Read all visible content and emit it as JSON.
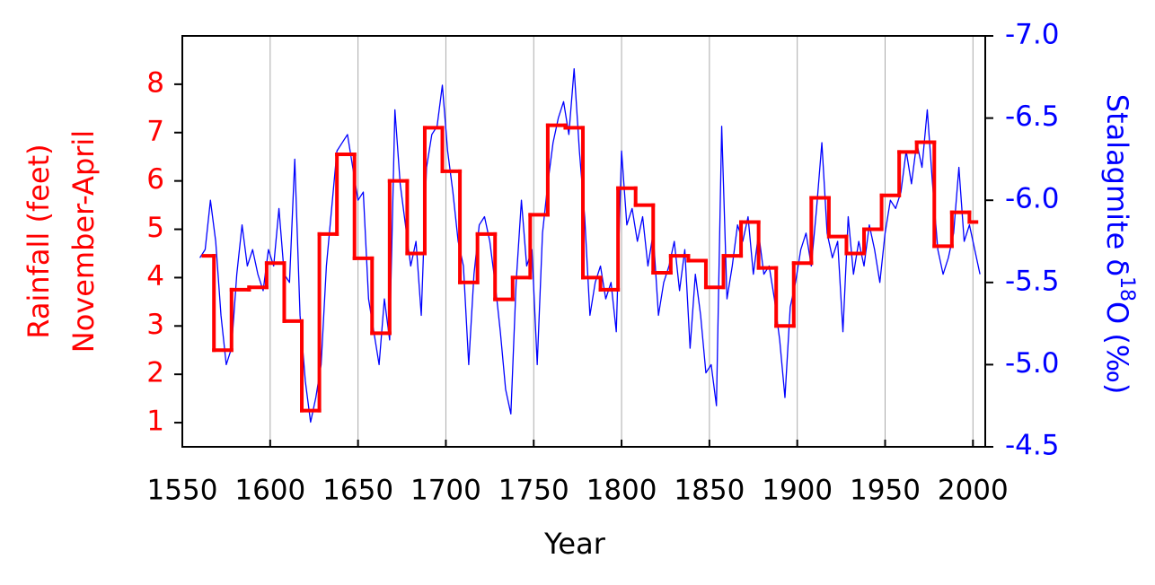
{
  "chart_data": {
    "type": "line",
    "xlabel": "Year",
    "ylabel": [
      "Rainfall (feet)",
      "November-April"
    ],
    "y2label": "Stalagmite δ18O (‰)",
    "xlim": [
      1550,
      2007
    ],
    "xticks": [
      1550,
      1600,
      1650,
      1700,
      1750,
      1800,
      1850,
      1900,
      1950,
      2000
    ],
    "ylim": [
      0.5,
      9
    ],
    "yticks": [
      1,
      2,
      3,
      4,
      5,
      6,
      7,
      8
    ],
    "y2lim": [
      -4.5,
      -7.0
    ],
    "y2ticks": [
      {
        "value": -7,
        "label": "-7.0"
      },
      -6.5,
      {
        "value": -6,
        "label": "-6.0"
      },
      -5.5,
      {
        "value": -5,
        "label": "-5.0"
      },
      -4.5
    ],
    "grid": "x",
    "ycolor": "#ff0000",
    "y2color": "#0000ff",
    "series": [
      {
        "type": "line",
        "axis": "y2",
        "color": "#0000ff",
        "x": [
          1560,
          1563,
          1566,
          1569,
          1572,
          1575,
          1578,
          1581,
          1584,
          1587,
          1590,
          1593,
          1596,
          1599,
          1602,
          1605,
          1608,
          1611,
          1614,
          1617,
          1620,
          1623,
          1626,
          1629,
          1632,
          1635,
          1638,
          1641,
          1644,
          1647,
          1650,
          1653,
          1656,
          1659,
          1662,
          1665,
          1668,
          1671,
          1674,
          1677,
          1680,
          1683,
          1686,
          1689,
          1692,
          1695,
          1698,
          1701,
          1704,
          1707,
          1710,
          1713,
          1716,
          1719,
          1722,
          1725,
          1728,
          1731,
          1734,
          1737,
          1740,
          1743,
          1746,
          1749,
          1752,
          1755,
          1758,
          1761,
          1764,
          1767,
          1770,
          1773,
          1776,
          1779,
          1782,
          1785,
          1788,
          1791,
          1794,
          1797,
          1800,
          1803,
          1806,
          1809,
          1812,
          1815,
          1818,
          1821,
          1824,
          1827,
          1830,
          1833,
          1836,
          1839,
          1842,
          1845,
          1848,
          1851,
          1854,
          1857,
          1860,
          1863,
          1866,
          1869,
          1872,
          1875,
          1878,
          1881,
          1884,
          1887,
          1890,
          1893,
          1896,
          1899,
          1902,
          1905,
          1908,
          1911,
          1914,
          1917,
          1920,
          1923,
          1926,
          1929,
          1932,
          1935,
          1938,
          1941,
          1944,
          1947,
          1950,
          1953,
          1956,
          1959,
          1962,
          1965,
          1968,
          1971,
          1974,
          1977,
          1980,
          1983,
          1986,
          1989,
          1992,
          1995,
          1998,
          2001,
          2004
        ],
        "values": [
          -5.65,
          -5.7,
          -6.0,
          -5.75,
          -5.3,
          -5.0,
          -5.1,
          -5.55,
          -5.85,
          -5.6,
          -5.7,
          -5.55,
          -5.45,
          -5.7,
          -5.6,
          -5.95,
          -5.55,
          -5.5,
          -6.25,
          -5.3,
          -4.9,
          -4.65,
          -4.8,
          -5.0,
          -5.6,
          -5.95,
          -6.3,
          -6.35,
          -6.4,
          -6.2,
          -6.0,
          -6.05,
          -5.4,
          -5.2,
          -5.0,
          -5.4,
          -5.15,
          -6.55,
          -6.1,
          -5.85,
          -5.6,
          -5.75,
          -5.3,
          -6.2,
          -6.4,
          -6.45,
          -6.7,
          -6.3,
          -6.05,
          -5.75,
          -5.6,
          -5.0,
          -5.55,
          -5.85,
          -5.9,
          -5.75,
          -5.5,
          -5.2,
          -4.85,
          -4.7,
          -5.5,
          -6.0,
          -5.6,
          -5.7,
          -5.0,
          -5.8,
          -6.1,
          -6.35,
          -6.5,
          -6.6,
          -6.4,
          -6.8,
          -6.3,
          -5.9,
          -5.3,
          -5.5,
          -5.6,
          -5.4,
          -5.5,
          -5.2,
          -6.3,
          -5.85,
          -5.95,
          -5.75,
          -5.9,
          -5.6,
          -5.8,
          -5.3,
          -5.5,
          -5.6,
          -5.75,
          -5.45,
          -5.7,
          -5.1,
          -5.55,
          -5.3,
          -4.95,
          -5.0,
          -4.75,
          -6.45,
          -5.4,
          -5.6,
          -5.85,
          -5.75,
          -5.9,
          -5.55,
          -5.8,
          -5.55,
          -5.6,
          -5.4,
          -5.15,
          -4.8,
          -5.35,
          -5.5,
          -5.7,
          -5.8,
          -5.6,
          -5.95,
          -6.35,
          -5.8,
          -5.65,
          -5.75,
          -5.2,
          -5.9,
          -5.55,
          -5.75,
          -5.6,
          -5.85,
          -5.7,
          -5.5,
          -5.8,
          -6.0,
          -5.95,
          -6.05,
          -6.3,
          -6.1,
          -6.35,
          -6.2,
          -6.55,
          -6.1,
          -5.7,
          -5.55,
          -5.65,
          -5.8,
          -6.2,
          -5.75,
          -5.85,
          -5.7,
          -5.55
        ]
      },
      {
        "type": "step",
        "axis": "y",
        "color": "#ff0000",
        "bins": [
          1562,
          1568,
          1578,
          1588,
          1598,
          1608,
          1618,
          1628,
          1638,
          1648,
          1658,
          1668,
          1678,
          1688,
          1698,
          1708,
          1718,
          1728,
          1738,
          1748,
          1758,
          1768,
          1778,
          1788,
          1798,
          1808,
          1818,
          1828,
          1838,
          1848,
          1858,
          1868,
          1878,
          1888,
          1898,
          1908,
          1918,
          1928,
          1938,
          1948,
          1958,
          1968,
          1978,
          1988,
          1998,
          2002
        ],
        "values": [
          4.45,
          2.5,
          3.75,
          3.8,
          4.3,
          3.1,
          1.25,
          4.9,
          6.55,
          4.4,
          2.85,
          6.0,
          4.5,
          7.1,
          6.2,
          3.9,
          4.9,
          3.55,
          4.0,
          5.3,
          7.15,
          7.1,
          4.0,
          3.75,
          5.85,
          5.5,
          4.1,
          4.45,
          4.35,
          3.8,
          4.45,
          5.15,
          4.2,
          3.0,
          4.3,
          5.65,
          4.85,
          4.5,
          5.0,
          5.7,
          6.6,
          6.8,
          4.65,
          5.35,
          5.15
        ]
      }
    ]
  }
}
